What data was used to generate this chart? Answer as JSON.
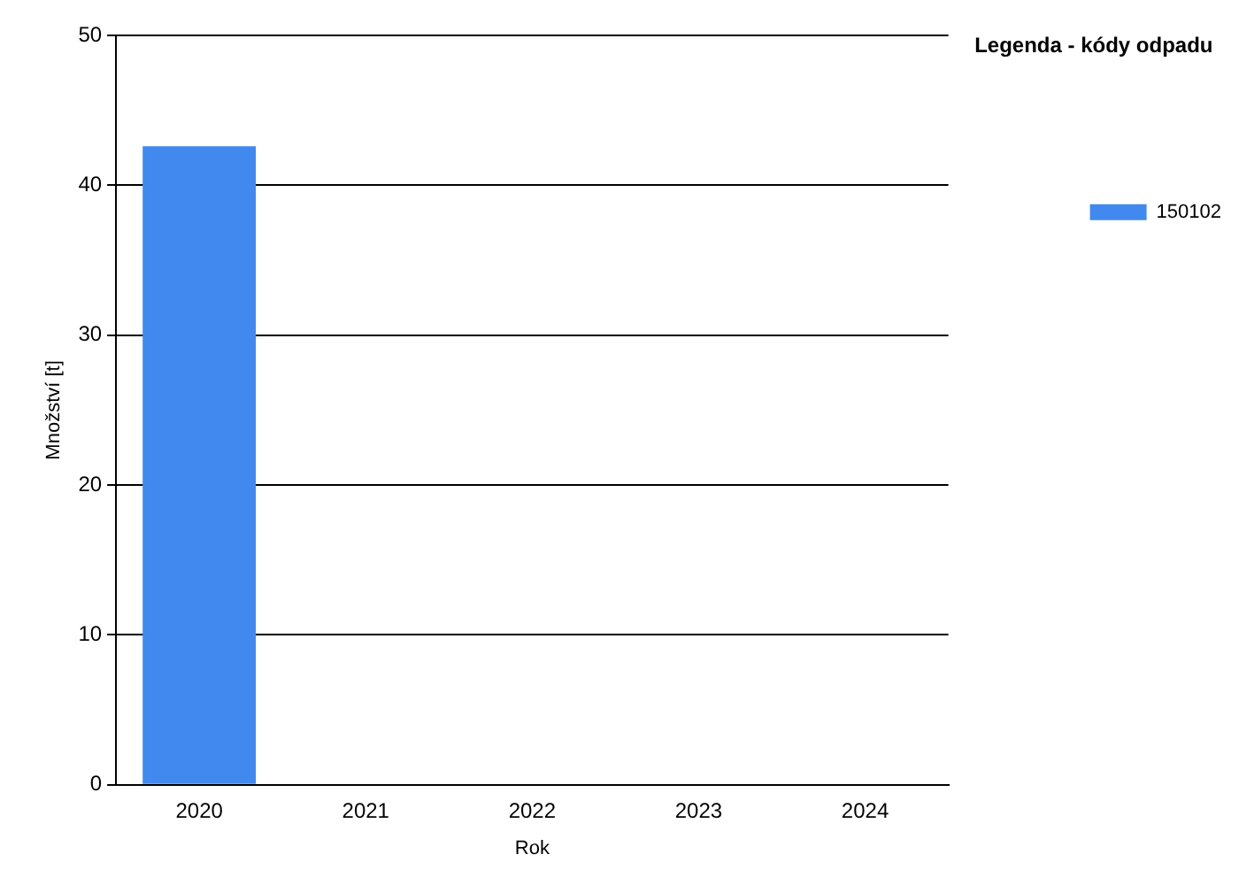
{
  "chart_data": {
    "type": "bar",
    "xlabel": "Rok",
    "ylabel": "Množství [t]",
    "legend_title": "Legenda - kódy odpadu",
    "categories": [
      "2020",
      "2021",
      "2022",
      "2023",
      "2024"
    ],
    "series": [
      {
        "name": "150102",
        "color": "#4189ee",
        "values": [
          42.6,
          null,
          null,
          null,
          null
        ]
      }
    ],
    "ylim": [
      0,
      50
    ],
    "yticks": [
      0,
      10,
      20,
      30,
      40,
      50
    ],
    "grid": "y",
    "legend": "top right"
  }
}
